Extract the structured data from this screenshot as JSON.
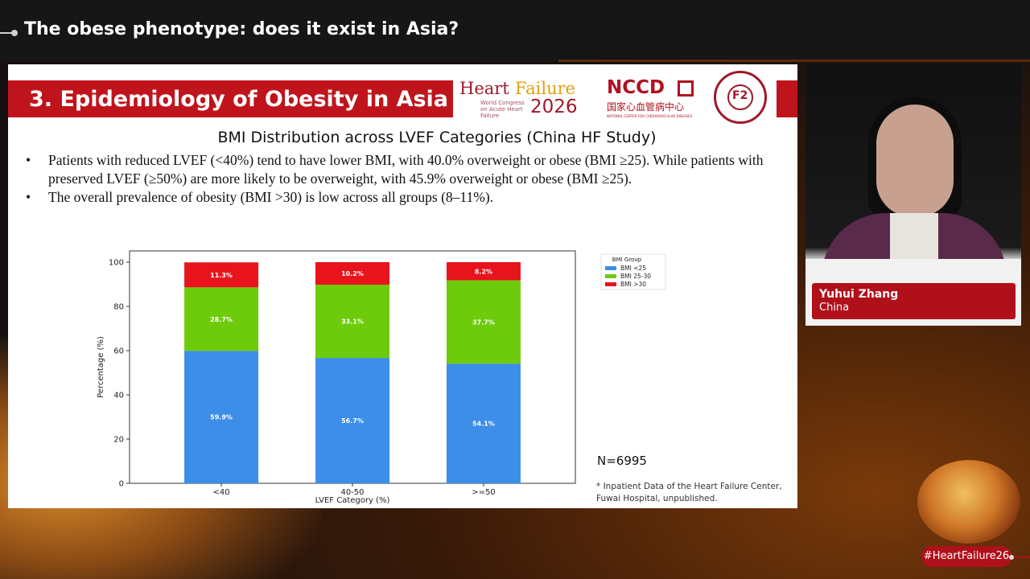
{
  "broadcast": {
    "title": "The obese phenotype: does it exist in Asia?",
    "hashtag": "#HeartFailure26"
  },
  "speaker": {
    "name": "Yuhui Zhang",
    "country": "China"
  },
  "slide": {
    "section_title": "3. Epidemiology of Obesity in Asia",
    "logos": {
      "hf_word1": "Heart",
      "hf_word2": "Failure",
      "hf_year": "2026",
      "hf_sub": "World Congress on Acute Heart Failure",
      "nccd": "NCCD",
      "nccd_cn": "国家心血管病中心",
      "nccd_en": "NATIONAL CENTER FOR CARDIOVASCULAR DISEASES",
      "seal_text": "F2"
    },
    "heading": "BMI Distribution across LVEF Categories (China HF Study)",
    "bullets": [
      "Patients with reduced LVEF (<40%) tend to have lower BMI, with 40.0% overweight or obese (BMI ≥25). While patients with preserved LVEF (≥50%) are more likely to be overweight, with 45.9% overweight or obese (BMI ≥25).",
      "The overall prevalence of obesity (BMI >30) is low across all groups (8–11%)."
    ],
    "bullet_mark": "•",
    "n_label": "N=6995",
    "footnote": "* Inpatient Data of the Heart Failure Center, Fuwai Hospital, unpublished."
  },
  "chart_data": {
    "type": "bar",
    "stacked": true,
    "categories": [
      "<40",
      "40-50",
      ">=50"
    ],
    "series": [
      {
        "name": "BMI <25",
        "values": [
          59.9,
          56.7,
          54.1
        ],
        "labels": [
          "59.9%",
          "56.7%",
          "54.1%"
        ],
        "color": "#3d8ee8"
      },
      {
        "name": "BMI 25-30",
        "values": [
          28.7,
          33.1,
          37.7
        ],
        "labels": [
          "28.7%",
          "33.1%",
          "37.7%"
        ],
        "color": "#6ecb0c"
      },
      {
        "name": "BMI >30",
        "values": [
          11.3,
          10.2,
          8.2
        ],
        "labels": [
          "11.3%",
          "10.2%",
          "8.2%"
        ],
        "color": "#e8141c"
      }
    ],
    "xlabel": "LVEF Category (%)",
    "ylabel": "Percentage (%)",
    "ylim": [
      0,
      100
    ],
    "yticks": [
      0,
      20,
      40,
      60,
      80,
      100
    ],
    "legend_title": "BMI Group",
    "legend_position": "outside-top-right",
    "grid": false
  }
}
